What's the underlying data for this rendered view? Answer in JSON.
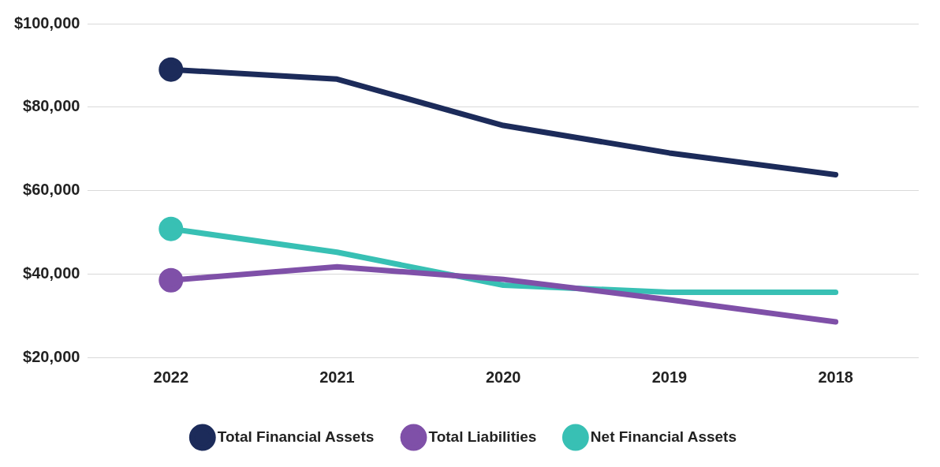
{
  "chart_data": {
    "type": "line",
    "categories": [
      "2022",
      "2021",
      "2020",
      "2019",
      "2018"
    ],
    "series": [
      {
        "name": "Total Financial Assets",
        "color": "#1c2b5a",
        "values": [
          89000,
          86700,
          75600,
          69000,
          63800
        ]
      },
      {
        "name": "Total Liabilities",
        "color": "#7f50a8",
        "values": [
          38500,
          41700,
          38700,
          33800,
          28500
        ]
      },
      {
        "name": "Net Financial Assets",
        "color": "#38c0b4",
        "values": [
          50800,
          45200,
          37300,
          35600,
          35600
        ]
      }
    ],
    "ylim": [
      20000,
      100000
    ],
    "yticks": [
      {
        "value": 20000,
        "label": "$20,000"
      },
      {
        "value": 40000,
        "label": "$40,000"
      },
      {
        "value": 60000,
        "label": "$60,000"
      },
      {
        "value": 80000,
        "label": "$80,000"
      },
      {
        "value": 100000,
        "label": "$100,000"
      }
    ],
    "grid": "y",
    "legend": "bottom",
    "line_style": "solid"
  }
}
